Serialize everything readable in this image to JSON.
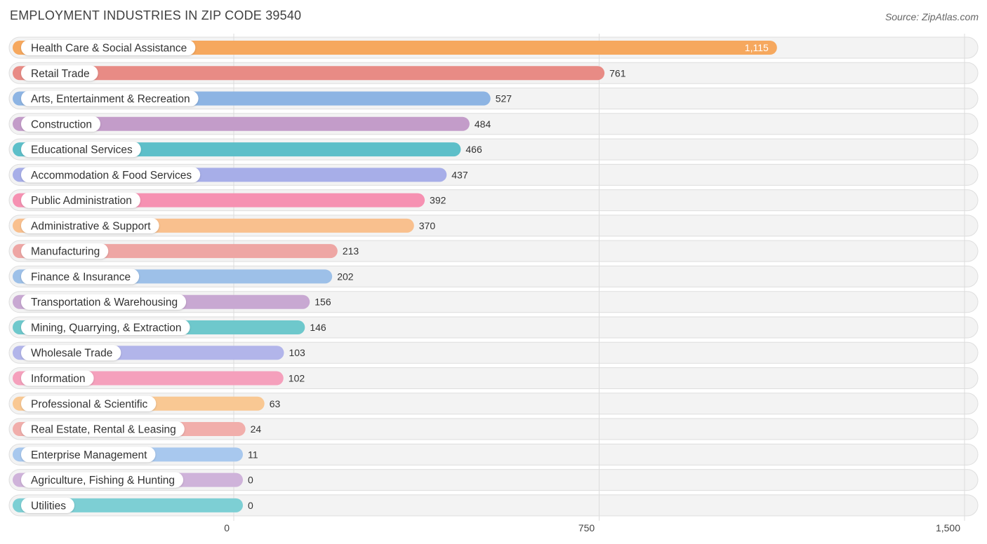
{
  "header": {
    "title": "EMPLOYMENT INDUSTRIES IN ZIP CODE 39540",
    "source": "Source: ZipAtlas.com"
  },
  "chart_data": {
    "type": "bar",
    "orientation": "horizontal",
    "title": "EMPLOYMENT INDUSTRIES IN ZIP CODE 39540",
    "xlabel": "",
    "ylabel": "",
    "xlim": [
      0,
      1500
    ],
    "ticks": [
      0,
      750,
      1500
    ],
    "tick_labels": [
      "0",
      "750",
      "1,500"
    ],
    "grid": true,
    "categories": [
      "Health Care & Social Assistance",
      "Retail Trade",
      "Arts, Entertainment & Recreation",
      "Construction",
      "Educational Services",
      "Accommodation & Food Services",
      "Public Administration",
      "Administrative & Support",
      "Manufacturing",
      "Finance & Insurance",
      "Transportation & Warehousing",
      "Mining, Quarrying, & Extraction",
      "Wholesale Trade",
      "Information",
      "Professional & Scientific",
      "Real Estate, Rental & Leasing",
      "Enterprise Management",
      "Agriculture, Fishing & Hunting",
      "Utilities"
    ],
    "values": [
      1115,
      761,
      527,
      484,
      466,
      437,
      392,
      370,
      213,
      202,
      156,
      146,
      103,
      102,
      63,
      24,
      11,
      0,
      0
    ],
    "value_labels": [
      "1,115",
      "761",
      "527",
      "484",
      "466",
      "437",
      "392",
      "370",
      "213",
      "202",
      "156",
      "146",
      "103",
      "102",
      "63",
      "24",
      "11",
      "0",
      "0"
    ],
    "colors": [
      "#f6a85e",
      "#e88b85",
      "#8db4e3",
      "#c39cc9",
      "#5dbfc9",
      "#a7aee8",
      "#f691b2",
      "#f9c08e",
      "#eea6a4",
      "#9dc0e8",
      "#c8a8d2",
      "#6ec8cc",
      "#b2b5ea",
      "#f5a0bc",
      "#f9c893",
      "#f1aeab",
      "#a8c8ee",
      "#cfb3da",
      "#7dcfd4"
    ]
  }
}
